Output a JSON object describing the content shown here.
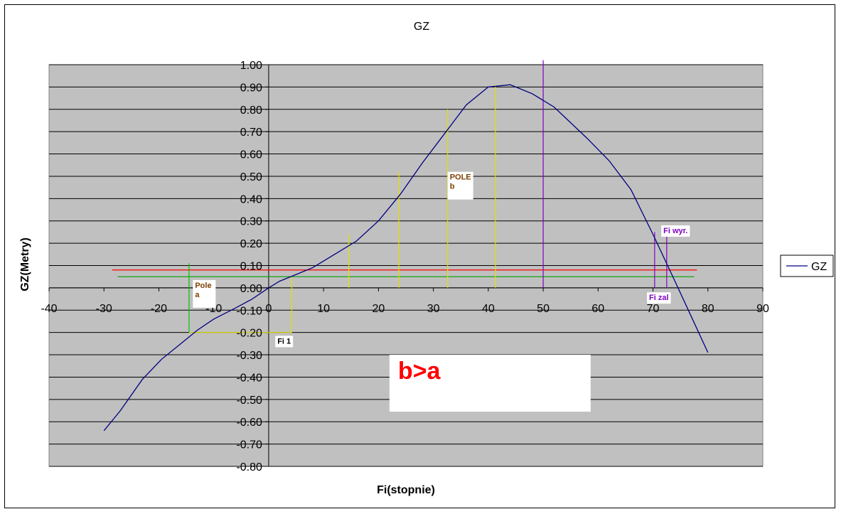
{
  "chart_data": {
    "type": "line",
    "title": "GZ",
    "xlabel": "Fi(stopnie)",
    "ylabel": "GZ(Metry)",
    "xlim": [
      -40,
      90
    ],
    "ylim": [
      -0.8,
      1.0
    ],
    "xticks": [
      -40,
      -30,
      -20,
      -10,
      0,
      10,
      20,
      30,
      40,
      50,
      60,
      70,
      80,
      90
    ],
    "yticks": [
      1.0,
      0.9,
      0.8,
      0.7,
      0.6,
      0.5,
      0.4,
      0.3,
      0.2,
      0.1,
      0.0,
      -0.1,
      -0.2,
      -0.3,
      -0.4,
      -0.5,
      -0.6,
      -0.7,
      -0.8
    ],
    "grid": "horizontal",
    "legend": {
      "position": "right",
      "entries": [
        "GZ"
      ]
    },
    "series": [
      {
        "name": "GZ",
        "color": "#000080",
        "x": [
          -30,
          -27,
          -23,
          -19.5,
          -16,
          -13,
          -10,
          -6,
          -3,
          0,
          2,
          5,
          8,
          12,
          16,
          20,
          24,
          28,
          32,
          36,
          40,
          44,
          48,
          52,
          55,
          58,
          62,
          66,
          70,
          74,
          77,
          80
        ],
        "y": [
          -0.64,
          -0.55,
          -0.41,
          -0.32,
          -0.25,
          -0.19,
          -0.14,
          -0.09,
          -0.05,
          0.0,
          0.03,
          0.06,
          0.09,
          0.15,
          0.21,
          0.3,
          0.42,
          0.56,
          0.69,
          0.82,
          0.9,
          0.91,
          0.87,
          0.81,
          0.74,
          0.67,
          0.57,
          0.44,
          0.24,
          0.03,
          -0.13,
          -0.29
        ]
      }
    ],
    "reference_lines": [
      {
        "kind": "horizontal",
        "color": "#ff0000",
        "y": 0.08,
        "x_from": -28.5,
        "x_to": 78
      },
      {
        "kind": "horizontal",
        "color": "#00a000",
        "y": 0.05,
        "x_from": -27.5,
        "x_to": 77.5
      },
      {
        "kind": "vertical",
        "color": "#00c000",
        "x": -14.5,
        "y_from": -0.2,
        "y_to": 0.11
      },
      {
        "kind": "horizontal",
        "color": "#e0e000",
        "y": -0.2,
        "x_from": -14.5,
        "x_to": 4.2
      },
      {
        "kind": "vertical",
        "color": "#e0e000",
        "x": 4.2,
        "y_from": -0.2,
        "y_to": 0.05
      },
      {
        "kind": "vertical",
        "color": "#e0e000",
        "x": 14.6,
        "y_from": 0.0,
        "y_to": 0.24
      },
      {
        "kind": "vertical",
        "color": "#e0e000",
        "x": 23.7,
        "y_from": 0.0,
        "y_to": 0.52
      },
      {
        "kind": "vertical",
        "color": "#e0e000",
        "x": 32.6,
        "y_from": 0.0,
        "y_to": 0.8
      },
      {
        "kind": "vertical",
        "color": "#e0e000",
        "x": 41.3,
        "y_from": 0.0,
        "y_to": 0.91
      },
      {
        "kind": "vertical",
        "color": "#8000c0",
        "x": 50,
        "y_from": 0.0,
        "y_to": 1.02
      },
      {
        "kind": "vertical",
        "color": "#8000c0",
        "x": 70.3,
        "y_from": 0.0,
        "y_to": 0.25
      },
      {
        "kind": "vertical",
        "color": "#8000c0",
        "x": 72.5,
        "y_from": 0.0,
        "y_to": 0.24
      }
    ],
    "annotations": [
      {
        "text": [
          "Pole",
          "a"
        ],
        "color": "#7f3f00",
        "x": -13.8,
        "y": 0.035,
        "box": true
      },
      {
        "text": [
          "POLE",
          "b"
        ],
        "color": "#7f3f00",
        "x": 32.6,
        "y": 0.52,
        "box": true
      },
      {
        "text": [
          "Fi 1"
        ],
        "color": "#000000",
        "x": 1.2,
        "y": -0.215,
        "box": true
      },
      {
        "text": [
          "Fi wyr."
        ],
        "color": "#8000c0",
        "x": 71.5,
        "y": 0.28,
        "box": true
      },
      {
        "text": [
          "Fi zal"
        ],
        "color": "#8000c0",
        "x": 68.9,
        "y": -0.02,
        "box": true
      },
      {
        "text": [
          "b>a"
        ],
        "color": "#ff0000",
        "x": 22.0,
        "y": -0.3,
        "box": true,
        "large": true
      }
    ]
  }
}
